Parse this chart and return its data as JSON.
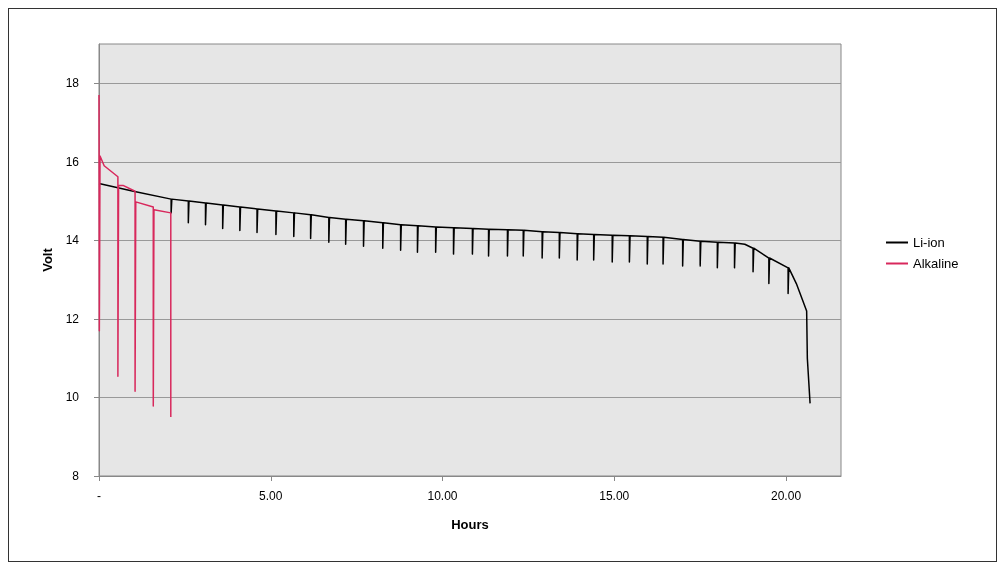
{
  "chart_data": {
    "type": "line",
    "xlabel": "Hours",
    "ylabel": "Volt",
    "xlim": [
      0,
      21.6
    ],
    "ylim": [
      8,
      19
    ],
    "xticks": [
      {
        "value": 0,
        "label": "-"
      },
      {
        "value": 5,
        "label": "5.00"
      },
      {
        "value": 10,
        "label": "10.00"
      },
      {
        "value": 15,
        "label": "15.00"
      },
      {
        "value": 20,
        "label": "20.00"
      }
    ],
    "yticks": [
      8,
      10,
      12,
      14,
      16,
      18
    ],
    "grid": "y",
    "legend": "right",
    "marker": "none",
    "line_style": "solid",
    "series": [
      {
        "name": "Li-ion",
        "color": "#000000",
        "x": [
          0,
          1,
          2.1,
          2.1,
          2.12,
          2.6,
          2.6,
          2.62,
          3.1,
          3.1,
          3.12,
          3.6,
          3.6,
          3.62,
          4.1,
          4.1,
          4.12,
          4.6,
          4.6,
          4.62,
          5.15,
          5.15,
          5.17,
          5.67,
          5.67,
          5.69,
          6.16,
          6.16,
          6.18,
          6.69,
          6.69,
          6.71,
          7.18,
          7.18,
          7.2,
          7.7,
          7.7,
          7.72,
          8.26,
          8.26,
          8.28,
          8.78,
          8.78,
          8.8,
          9.27,
          9.27,
          9.29,
          9.8,
          9.8,
          9.82,
          10.32,
          10.32,
          10.34,
          10.87,
          10.87,
          10.89,
          11.34,
          11.34,
          11.36,
          11.89,
          11.89,
          11.91,
          12.35,
          12.35,
          12.37,
          12.9,
          12.9,
          12.92,
          13.4,
          13.4,
          13.42,
          13.92,
          13.92,
          13.94,
          14.4,
          14.4,
          14.42,
          14.94,
          14.94,
          14.96,
          15.44,
          15.44,
          15.46,
          15.96,
          15.96,
          15.98,
          16.42,
          16.42,
          16.44,
          16.99,
          16.99,
          17.01,
          17.5,
          17.5,
          17.52,
          18.0,
          18.0,
          18.02,
          18.5,
          18.5,
          18.52,
          18.8,
          19.04,
          19.04,
          19.06,
          19.5,
          19.5,
          19.52,
          20.06,
          20.06,
          20.08,
          20.3,
          20.6,
          20.62,
          20.7
        ],
        "values": [
          15.45,
          15.25,
          15.05,
          14.7,
          15.05,
          15.0,
          14.45,
          15.0,
          14.95,
          14.4,
          14.95,
          14.9,
          14.3,
          14.9,
          14.85,
          14.25,
          14.85,
          14.8,
          14.2,
          14.8,
          14.75,
          14.15,
          14.75,
          14.7,
          14.1,
          14.7,
          14.65,
          14.05,
          14.65,
          14.58,
          13.95,
          14.58,
          14.54,
          13.9,
          14.54,
          14.5,
          13.85,
          14.5,
          14.45,
          13.8,
          14.45,
          14.4,
          13.75,
          14.4,
          14.37,
          13.7,
          14.37,
          14.34,
          13.7,
          14.34,
          14.32,
          13.65,
          14.32,
          14.3,
          13.65,
          14.3,
          14.28,
          13.6,
          14.28,
          14.27,
          13.6,
          14.27,
          14.26,
          13.6,
          14.26,
          14.22,
          13.55,
          14.22,
          14.2,
          13.55,
          14.2,
          14.17,
          13.5,
          14.17,
          14.15,
          13.5,
          14.15,
          14.13,
          13.45,
          14.13,
          14.12,
          13.45,
          14.12,
          14.1,
          13.4,
          14.1,
          14.08,
          13.4,
          14.08,
          14.02,
          13.35,
          14.02,
          13.98,
          13.35,
          13.98,
          13.95,
          13.3,
          13.95,
          13.93,
          13.3,
          13.93,
          13.9,
          13.8,
          13.2,
          13.8,
          13.55,
          12.9,
          13.55,
          13.3,
          12.65,
          13.3,
          12.9,
          12.2,
          11.0,
          9.85
        ]
      },
      {
        "name": "Alkaline",
        "color": "#d8285c",
        "x": [
          0,
          0.01,
          0.03,
          0.15,
          0.55,
          0.55,
          0.57,
          0.7,
          1.05,
          1.05,
          1.07,
          1.58,
          1.58,
          1.6,
          2.09,
          2.09
        ],
        "values": [
          17.7,
          11.7,
          16.15,
          15.9,
          15.62,
          10.54,
          15.4,
          15.4,
          15.25,
          10.16,
          14.98,
          14.85,
          9.78,
          14.78,
          14.7,
          9.5
        ]
      }
    ]
  }
}
